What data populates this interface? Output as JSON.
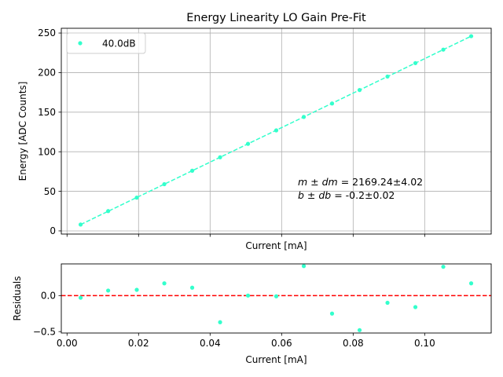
{
  "chart_data": [
    {
      "type": "scatter",
      "title": "Energy Linearity LO Gain Pre-Fit",
      "xlabel": "Current [mA]",
      "ylabel": "Energy [ADC Counts]",
      "xlim": [
        -0.0016,
        0.1186
      ],
      "ylim": [
        -4,
        256
      ],
      "grid": true,
      "xticks": [
        0.0,
        0.02,
        0.04,
        0.06,
        0.08,
        0.1
      ],
      "show_xtick_labels": false,
      "yticks": [
        0,
        50,
        100,
        150,
        200,
        250
      ],
      "ytick_labels": [
        "0",
        "50",
        "100",
        "150",
        "200",
        "250"
      ],
      "legend": {
        "placement": "top-left",
        "entries": [
          "40.0dB"
        ]
      },
      "series": [
        {
          "name": "40.0dB",
          "color": "#33ffcc",
          "marker": "dot",
          "x": [
            0.0038,
            0.0115,
            0.0195,
            0.0272,
            0.035,
            0.0428,
            0.0506,
            0.0585,
            0.0662,
            0.0741,
            0.0818,
            0.0896,
            0.0974,
            0.1052,
            0.113
          ],
          "y": [
            8,
            25,
            42,
            59,
            76,
            93,
            110,
            127,
            144,
            161,
            178,
            195,
            212,
            229,
            246
          ]
        }
      ],
      "fit": {
        "color": "#33ffcc",
        "style": "dashed",
        "x": [
          0.0038,
          0.113
        ],
        "y": [
          8,
          246
        ]
      },
      "annotation": {
        "line1_label": "m ± dm",
        "line1_value": " = 2169.24±4.02",
        "line2_label": "b ± db",
        "line2_value": " = -0.2±0.02"
      }
    },
    {
      "type": "scatter",
      "title": "",
      "xlabel": "Current [mA]",
      "ylabel": "Residuals",
      "xlim": [
        -0.0016,
        0.1186
      ],
      "ylim": [
        -0.52,
        0.44
      ],
      "grid": false,
      "xticks": [
        0.0,
        0.02,
        0.04,
        0.06,
        0.08,
        0.1
      ],
      "xtick_labels": [
        "0.00",
        "0.02",
        "0.04",
        "0.06",
        "0.08",
        "0.10"
      ],
      "yticks": [
        -0.5,
        0.0
      ],
      "ytick_labels": [
        "−0.5",
        "0.0"
      ],
      "reference_line": {
        "y": 0,
        "color": "#ff0000",
        "style": "dashed"
      },
      "series": [
        {
          "name": "40.0dB",
          "color": "#33ffcc",
          "marker": "dot",
          "x": [
            0.0038,
            0.0115,
            0.0195,
            0.0272,
            0.035,
            0.0428,
            0.0506,
            0.0585,
            0.0662,
            0.0741,
            0.0818,
            0.0896,
            0.0974,
            0.1052,
            0.113
          ],
          "y": [
            -0.03,
            0.07,
            0.08,
            0.17,
            0.11,
            -0.37,
            0.0,
            -0.01,
            0.41,
            -0.25,
            -0.48,
            -0.1,
            -0.16,
            0.4,
            0.17
          ]
        }
      ]
    }
  ]
}
